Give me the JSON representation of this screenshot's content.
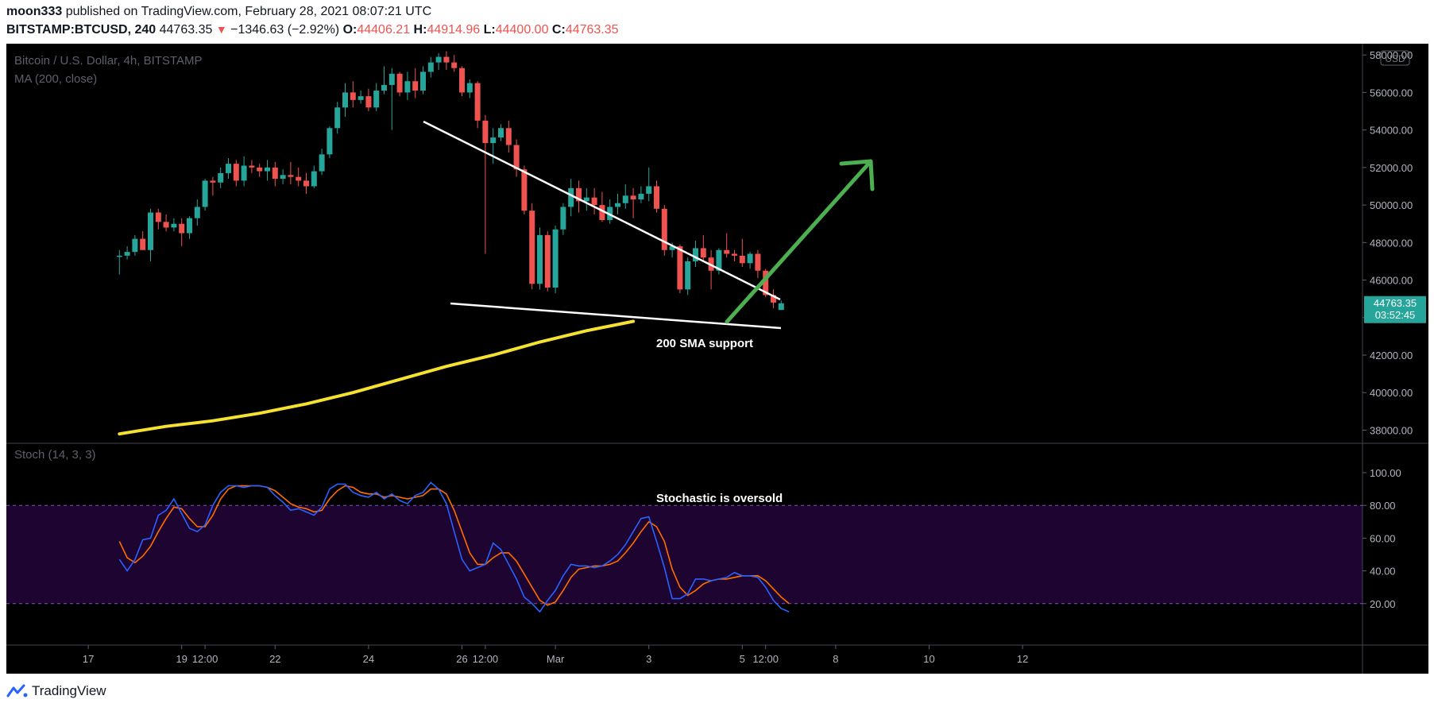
{
  "header": {
    "author": "moon333",
    "published_text": "published on TradingView.com, February 28, 2021 08:07:21 UTC",
    "symbol": "BITSTAMP:BTCUSD, 240",
    "price": "44763.35",
    "change": "−1346.63 (−2.92%)",
    "o_label": "O:",
    "o_value": "44406.21",
    "h_label": "H:",
    "h_value": "44914.96",
    "l_label": "L:",
    "l_value": "44400.00",
    "c_label": "C:",
    "c_value": "44763.35"
  },
  "footer": {
    "brand": "TradingView",
    "logo_icon": "tradingview-logo-icon"
  },
  "colors": {
    "up": "#26a69a",
    "down": "#ef5350",
    "ma": "#f5e12f",
    "stoch_k": "#2962ff",
    "stoch_d": "#ff6d00",
    "arrow": "#4caf50",
    "band": "#1e0430"
  },
  "chart_data": {
    "type": "candlestick",
    "title": "Bitcoin / U.S. Dollar, 4h, BITSTAMP",
    "indicator_label": "MA (200, close)",
    "currency_badge": "USD",
    "price_label": "44763.35",
    "countdown_label": "03:52:45",
    "y_ticks": [
      "58000.00",
      "56000.00",
      "54000.00",
      "52000.00",
      "50000.00",
      "48000.00",
      "46000.00",
      "44000.00",
      "42000.00",
      "40000.00",
      "38000.00"
    ],
    "y_range": [
      37300,
      58600
    ],
    "x_ticks": [
      {
        "label": "17",
        "t": 10
      },
      {
        "label": "19",
        "t": 22
      },
      {
        "label": "12:00",
        "t": 25
      },
      {
        "label": "22",
        "t": 34
      },
      {
        "label": "24",
        "t": 46
      },
      {
        "label": "26",
        "t": 58
      },
      {
        "label": "12:00",
        "t": 61
      },
      {
        "label": "Mar",
        "t": 70
      },
      {
        "label": "3",
        "t": 82
      },
      {
        "label": "5",
        "t": 94
      },
      {
        "label": "12:00",
        "t": 97
      },
      {
        "label": "8",
        "t": 106
      },
      {
        "label": "10",
        "t": 118
      },
      {
        "label": "12",
        "t": 130
      }
    ],
    "candles": [
      {
        "o": 47250,
        "h": 47600,
        "l": 46300,
        "c": 47300
      },
      {
        "o": 47300,
        "h": 47800,
        "l": 47100,
        "c": 47500
      },
      {
        "o": 47500,
        "h": 48400,
        "l": 47300,
        "c": 48200
      },
      {
        "o": 48200,
        "h": 48600,
        "l": 47700,
        "c": 47600
      },
      {
        "o": 47600,
        "h": 49800,
        "l": 47000,
        "c": 49600
      },
      {
        "o": 49600,
        "h": 49800,
        "l": 48700,
        "c": 49100
      },
      {
        "o": 49100,
        "h": 49500,
        "l": 48600,
        "c": 48800
      },
      {
        "o": 48800,
        "h": 49300,
        "l": 48600,
        "c": 49000
      },
      {
        "o": 49000,
        "h": 49300,
        "l": 47800,
        "c": 48500
      },
      {
        "o": 48500,
        "h": 49400,
        "l": 48200,
        "c": 49300
      },
      {
        "o": 49300,
        "h": 50300,
        "l": 48900,
        "c": 49900
      },
      {
        "o": 49900,
        "h": 51400,
        "l": 49700,
        "c": 51300
      },
      {
        "o": 51300,
        "h": 51500,
        "l": 50500,
        "c": 51200
      },
      {
        "o": 51200,
        "h": 52000,
        "l": 50900,
        "c": 51700
      },
      {
        "o": 51700,
        "h": 52500,
        "l": 51400,
        "c": 52200
      },
      {
        "o": 52200,
        "h": 52400,
        "l": 51000,
        "c": 51300
      },
      {
        "o": 51300,
        "h": 52600,
        "l": 51000,
        "c": 52100
      },
      {
        "o": 52100,
        "h": 52400,
        "l": 51700,
        "c": 52000
      },
      {
        "o": 52000,
        "h": 52200,
        "l": 51500,
        "c": 51800
      },
      {
        "o": 51800,
        "h": 52400,
        "l": 51300,
        "c": 52000
      },
      {
        "o": 52000,
        "h": 52300,
        "l": 51000,
        "c": 51400
      },
      {
        "o": 51400,
        "h": 51900,
        "l": 51100,
        "c": 51600
      },
      {
        "o": 51600,
        "h": 52300,
        "l": 51100,
        "c": 51500
      },
      {
        "o": 51500,
        "h": 52000,
        "l": 51000,
        "c": 51300
      },
      {
        "o": 51300,
        "h": 51700,
        "l": 50600,
        "c": 51000
      },
      {
        "o": 51000,
        "h": 52100,
        "l": 50900,
        "c": 51800
      },
      {
        "o": 51800,
        "h": 53000,
        "l": 51600,
        "c": 52700
      },
      {
        "o": 52700,
        "h": 54200,
        "l": 52500,
        "c": 54100
      },
      {
        "o": 54100,
        "h": 55500,
        "l": 53800,
        "c": 55200
      },
      {
        "o": 55200,
        "h": 56500,
        "l": 54700,
        "c": 56000
      },
      {
        "o": 56000,
        "h": 56600,
        "l": 55200,
        "c": 55600
      },
      {
        "o": 55600,
        "h": 56100,
        "l": 55400,
        "c": 55800
      },
      {
        "o": 55800,
        "h": 56200,
        "l": 55000,
        "c": 55200
      },
      {
        "o": 55200,
        "h": 56500,
        "l": 55000,
        "c": 56100
      },
      {
        "o": 56100,
        "h": 57400,
        "l": 55900,
        "c": 56400
      },
      {
        "o": 56400,
        "h": 57300,
        "l": 54000,
        "c": 57000
      },
      {
        "o": 57000,
        "h": 57100,
        "l": 55800,
        "c": 56000
      },
      {
        "o": 56000,
        "h": 57100,
        "l": 55600,
        "c": 56600
      },
      {
        "o": 56600,
        "h": 57300,
        "l": 55700,
        "c": 56100
      },
      {
        "o": 56100,
        "h": 57400,
        "l": 55900,
        "c": 57100
      },
      {
        "o": 57100,
        "h": 57900,
        "l": 56800,
        "c": 57600
      },
      {
        "o": 57600,
        "h": 58100,
        "l": 57200,
        "c": 57900
      },
      {
        "o": 57900,
        "h": 58200,
        "l": 57200,
        "c": 57600
      },
      {
        "o": 57600,
        "h": 58000,
        "l": 57100,
        "c": 57300
      },
      {
        "o": 57300,
        "h": 57400,
        "l": 55800,
        "c": 56000
      },
      {
        "o": 56000,
        "h": 56700,
        "l": 55700,
        "c": 56500
      },
      {
        "o": 56500,
        "h": 56600,
        "l": 54100,
        "c": 54500
      },
      {
        "o": 54500,
        "h": 54800,
        "l": 47400,
        "c": 53300
      },
      {
        "o": 53300,
        "h": 54100,
        "l": 52200,
        "c": 53600
      },
      {
        "o": 53600,
        "h": 54300,
        "l": 53400,
        "c": 54100
      },
      {
        "o": 54100,
        "h": 54500,
        "l": 52800,
        "c": 53200
      },
      {
        "o": 53200,
        "h": 53500,
        "l": 51500,
        "c": 51900
      },
      {
        "o": 51900,
        "h": 52100,
        "l": 49500,
        "c": 49700
      },
      {
        "o": 49700,
        "h": 50100,
        "l": 45500,
        "c": 45800
      },
      {
        "o": 45800,
        "h": 48800,
        "l": 45500,
        "c": 48400
      },
      {
        "o": 48400,
        "h": 48600,
        "l": 45400,
        "c": 45600
      },
      {
        "o": 45600,
        "h": 48900,
        "l": 45300,
        "c": 48700
      },
      {
        "o": 48700,
        "h": 50100,
        "l": 48400,
        "c": 49900
      },
      {
        "o": 49900,
        "h": 51400,
        "l": 49400,
        "c": 50900
      },
      {
        "o": 50900,
        "h": 51300,
        "l": 49600,
        "c": 50200
      },
      {
        "o": 50200,
        "h": 50900,
        "l": 49700,
        "c": 50400
      },
      {
        "o": 50400,
        "h": 50900,
        "l": 49500,
        "c": 50000
      },
      {
        "o": 50000,
        "h": 50700,
        "l": 49100,
        "c": 49200
      },
      {
        "o": 49200,
        "h": 50300,
        "l": 49000,
        "c": 49900
      },
      {
        "o": 49900,
        "h": 50600,
        "l": 49500,
        "c": 50100
      },
      {
        "o": 50100,
        "h": 51100,
        "l": 49800,
        "c": 50500
      },
      {
        "o": 50500,
        "h": 50900,
        "l": 49300,
        "c": 50300
      },
      {
        "o": 50300,
        "h": 51000,
        "l": 50100,
        "c": 50600
      },
      {
        "o": 50600,
        "h": 52000,
        "l": 50200,
        "c": 51000
      },
      {
        "o": 51000,
        "h": 51300,
        "l": 49600,
        "c": 49800
      },
      {
        "o": 49800,
        "h": 50000,
        "l": 47300,
        "c": 47600
      },
      {
        "o": 47600,
        "h": 48000,
        "l": 47200,
        "c": 47800
      },
      {
        "o": 47800,
        "h": 47900,
        "l": 45300,
        "c": 45500
      },
      {
        "o": 45500,
        "h": 47200,
        "l": 45200,
        "c": 47000
      },
      {
        "o": 47000,
        "h": 48100,
        "l": 46700,
        "c": 47700
      },
      {
        "o": 47700,
        "h": 48400,
        "l": 47000,
        "c": 47200
      },
      {
        "o": 47200,
        "h": 47600,
        "l": 45500,
        "c": 46500
      },
      {
        "o": 46500,
        "h": 47700,
        "l": 46300,
        "c": 47600
      },
      {
        "o": 47600,
        "h": 48500,
        "l": 47200,
        "c": 47400
      },
      {
        "o": 47400,
        "h": 47600,
        "l": 47000,
        "c": 47300
      },
      {
        "o": 47300,
        "h": 48200,
        "l": 46700,
        "c": 46900
      },
      {
        "o": 46900,
        "h": 47500,
        "l": 46600,
        "c": 47400
      },
      {
        "o": 47400,
        "h": 47600,
        "l": 46100,
        "c": 46500
      },
      {
        "o": 46500,
        "h": 46600,
        "l": 45100,
        "c": 45200
      },
      {
        "o": 45200,
        "h": 45500,
        "l": 44500,
        "c": 44800
      },
      {
        "o": 44406,
        "h": 44915,
        "l": 44400,
        "c": 44763
      }
    ],
    "ma_200": [
      {
        "t": 0,
        "v": 37800
      },
      {
        "t": 6,
        "v": 38200
      },
      {
        "t": 12,
        "v": 38500
      },
      {
        "t": 18,
        "v": 38900
      },
      {
        "t": 24,
        "v": 39400
      },
      {
        "t": 30,
        "v": 40000
      },
      {
        "t": 36,
        "v": 40700
      },
      {
        "t": 42,
        "v": 41400
      },
      {
        "t": 48,
        "v": 42000
      },
      {
        "t": 54,
        "v": 42700
      },
      {
        "t": 60,
        "v": 43300
      },
      {
        "t": 66,
        "v": 43800
      }
    ],
    "stochastic": {
      "label": "Stoch (14, 3, 3)",
      "y_ticks": [
        "100.00",
        "80.00",
        "60.00",
        "40.00",
        "20.00"
      ],
      "upper_band": 80,
      "lower_band": 20,
      "k": [
        47,
        40,
        47,
        59,
        60,
        74,
        77,
        84,
        75,
        66,
        64,
        68,
        80,
        88,
        92,
        92,
        91,
        92,
        92,
        91,
        86,
        82,
        77,
        78,
        76,
        74,
        79,
        90,
        93,
        93,
        88,
        86,
        85,
        88,
        84,
        87,
        83,
        81,
        86,
        88,
        94,
        90,
        81,
        64,
        47,
        40,
        42,
        44,
        57,
        53,
        44,
        35,
        24,
        20,
        15,
        22,
        28,
        37,
        44,
        43,
        43,
        42,
        43,
        46,
        50,
        56,
        64,
        72,
        73,
        58,
        42,
        23,
        23,
        26,
        35,
        35,
        34,
        35,
        36,
        39,
        37,
        37,
        36,
        30,
        22,
        17,
        15
      ],
      "d": [
        58,
        48,
        45,
        49,
        55,
        64,
        72,
        79,
        78,
        72,
        67,
        67,
        74,
        84,
        90,
        92,
        92,
        92,
        92,
        91,
        89,
        85,
        81,
        79,
        78,
        76,
        77,
        84,
        89,
        92,
        91,
        88,
        87,
        87,
        85,
        86,
        85,
        84,
        85,
        86,
        90,
        90,
        87,
        77,
        64,
        51,
        44,
        44,
        48,
        51,
        51,
        46,
        38,
        30,
        22,
        19,
        21,
        28,
        36,
        41,
        42,
        43,
        43,
        44,
        46,
        51,
        57,
        64,
        70,
        67,
        58,
        41,
        30,
        25,
        28,
        32,
        34,
        35,
        35,
        36,
        37,
        37,
        37,
        34,
        29,
        24,
        20
      ]
    },
    "annotations": [
      {
        "text": "200 SMA support"
      },
      {
        "text": "Stochastic is oversold"
      }
    ]
  }
}
